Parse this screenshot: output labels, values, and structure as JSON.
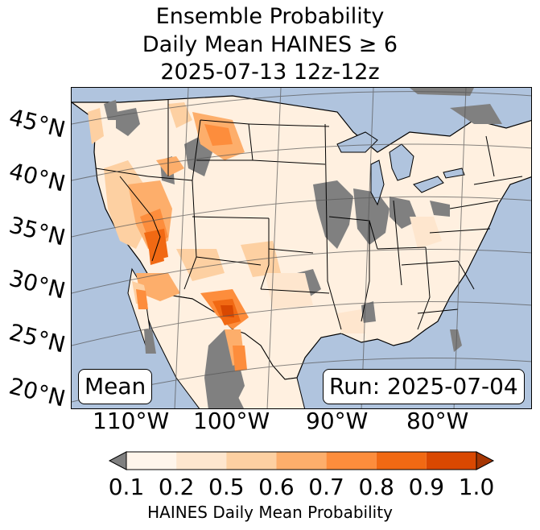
{
  "title": {
    "line1": "Ensemble Probability",
    "line2": "Daily Mean HAINES ≥ 6",
    "line3": "2025-07-13 12z-12z"
  },
  "map": {
    "latitude_labels": [
      "45°N",
      "40°N",
      "35°N",
      "30°N",
      "25°N",
      "20°N"
    ],
    "longitude_labels": [
      "110°W",
      "100°W",
      "90°W",
      "80°W"
    ],
    "mean_label": "Mean",
    "run_label": "Run: 2025-07-04",
    "colors": {
      "ocean": "#b0c4de",
      "missing": "#808080",
      "land_base": "#fff0e0"
    }
  },
  "colorbar": {
    "ticks": [
      "0.1",
      "0.2",
      "0.5",
      "0.6",
      "0.7",
      "0.8",
      "0.9",
      "1.0"
    ],
    "colors": [
      "#fff5eb",
      "#fee6ce",
      "#fdd0a2",
      "#fdae6b",
      "#fd8d3c",
      "#f16913",
      "#d94801",
      "#a63603"
    ],
    "under_color": "#808080",
    "label": "HAINES Daily Mean Probability"
  }
}
